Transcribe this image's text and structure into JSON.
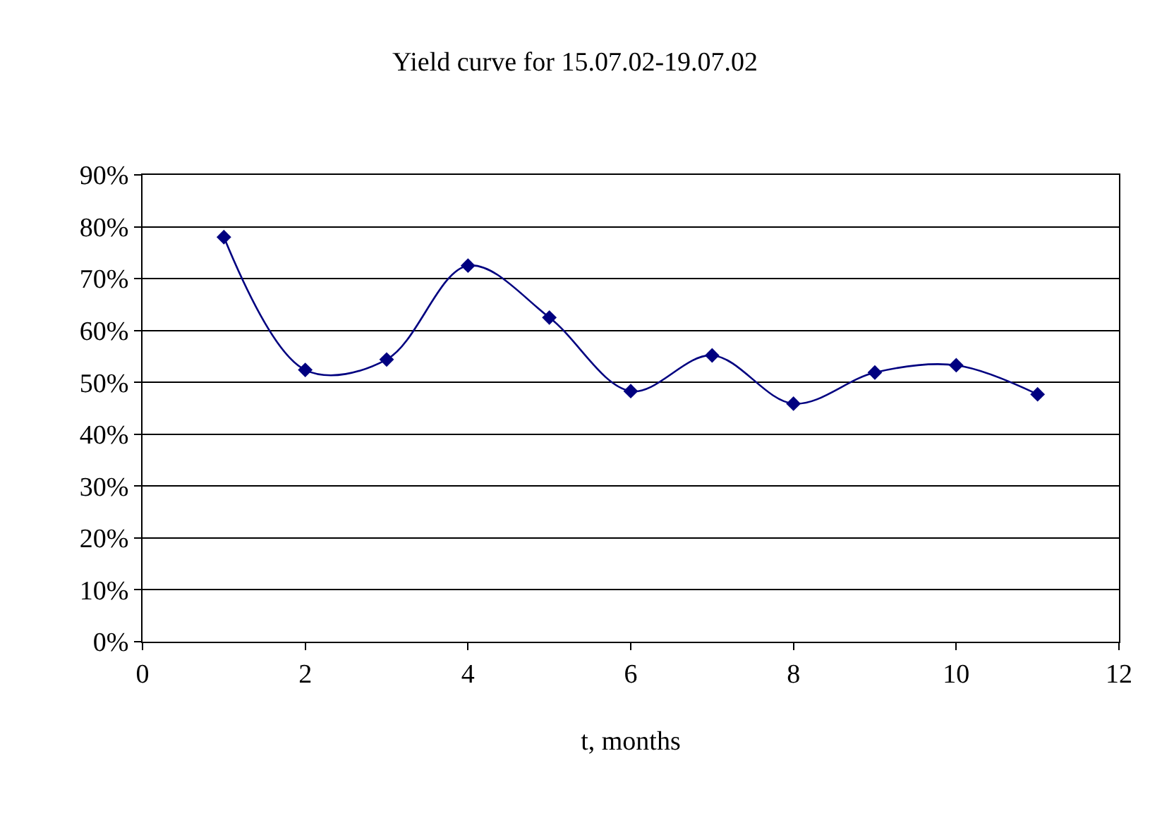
{
  "chart_data": {
    "type": "line",
    "title": "Yield curve for 15.07.02-19.07.02",
    "xlabel": "t, months",
    "x": [
      1,
      2,
      3,
      4,
      5,
      6,
      7,
      8,
      9,
      10,
      11
    ],
    "series": [
      {
        "color": "#000080",
        "values": [
          78,
          52.4,
          54.4,
          72.5,
          62.5,
          48.3,
          55.2,
          45.9,
          51.9,
          53.3,
          47.7
        ]
      }
    ],
    "xlim": [
      0,
      12
    ],
    "xticks": [
      0,
      2,
      4,
      6,
      8,
      10,
      12
    ],
    "ylim": [
      0,
      90
    ],
    "yticks": [
      {
        "value": 0,
        "label": "0%"
      },
      {
        "value": 10,
        "label": "10%"
      },
      {
        "value": 20,
        "label": "20%"
      },
      {
        "value": 30,
        "label": "30%"
      },
      {
        "value": 40,
        "label": "40%"
      },
      {
        "value": 50,
        "label": "50%"
      },
      {
        "value": 60,
        "label": "60%"
      },
      {
        "value": 70,
        "label": "70%"
      },
      {
        "value": 80,
        "label": "80%"
      },
      {
        "value": 90,
        "label": "90%"
      }
    ],
    "grid": "y",
    "marker": "diamond",
    "line_style": "solid"
  }
}
